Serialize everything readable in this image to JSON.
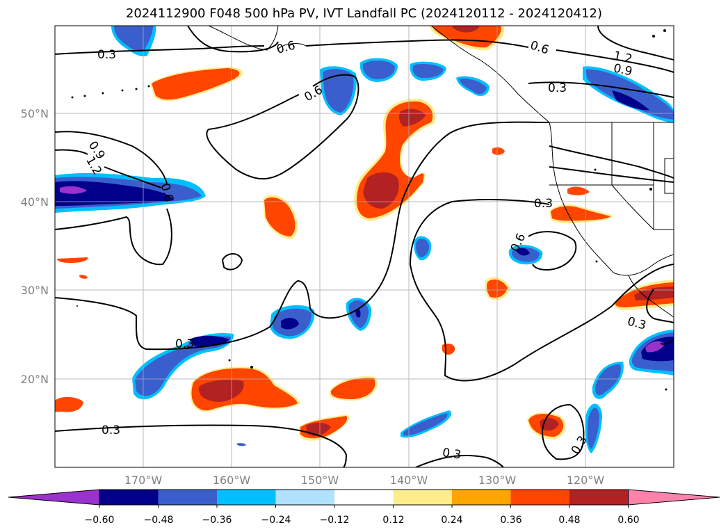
{
  "title": "2024112900 F048 500 hPa PV, IVT Landfall PC (2024120112 - 2024120412)",
  "map": {
    "lat_ticks": [
      "50°N",
      "40°N",
      "30°N",
      "20°N"
    ],
    "lon_ticks": [
      "170°W",
      "160°W",
      "150°W",
      "140°W",
      "130°W",
      "120°W"
    ],
    "gridlines": true,
    "contour_labels": [
      "0.3",
      "0.6",
      "0.6",
      "0.6",
      "0.3",
      "1.2",
      "0.9",
      "0.9",
      "1.2",
      "0.6",
      "0.3",
      "0.6",
      "0.3",
      "0.3",
      "0.3",
      "0.3",
      "0.3"
    ]
  },
  "colorbar": {
    "colors": [
      "#9a32cd",
      "#00008b",
      "#3a5fcd",
      "#00bfff",
      "#b0e2ff",
      "#ffffff",
      "#ffec8b",
      "#ffa500",
      "#ff4500",
      "#b22222",
      "#ff82ab"
    ],
    "tick_labels": [
      "−0.60",
      "−0.48",
      "−0.36",
      "−0.24",
      "−0.12",
      "0.12",
      "0.24",
      "0.36",
      "0.48",
      "0.60"
    ]
  }
}
